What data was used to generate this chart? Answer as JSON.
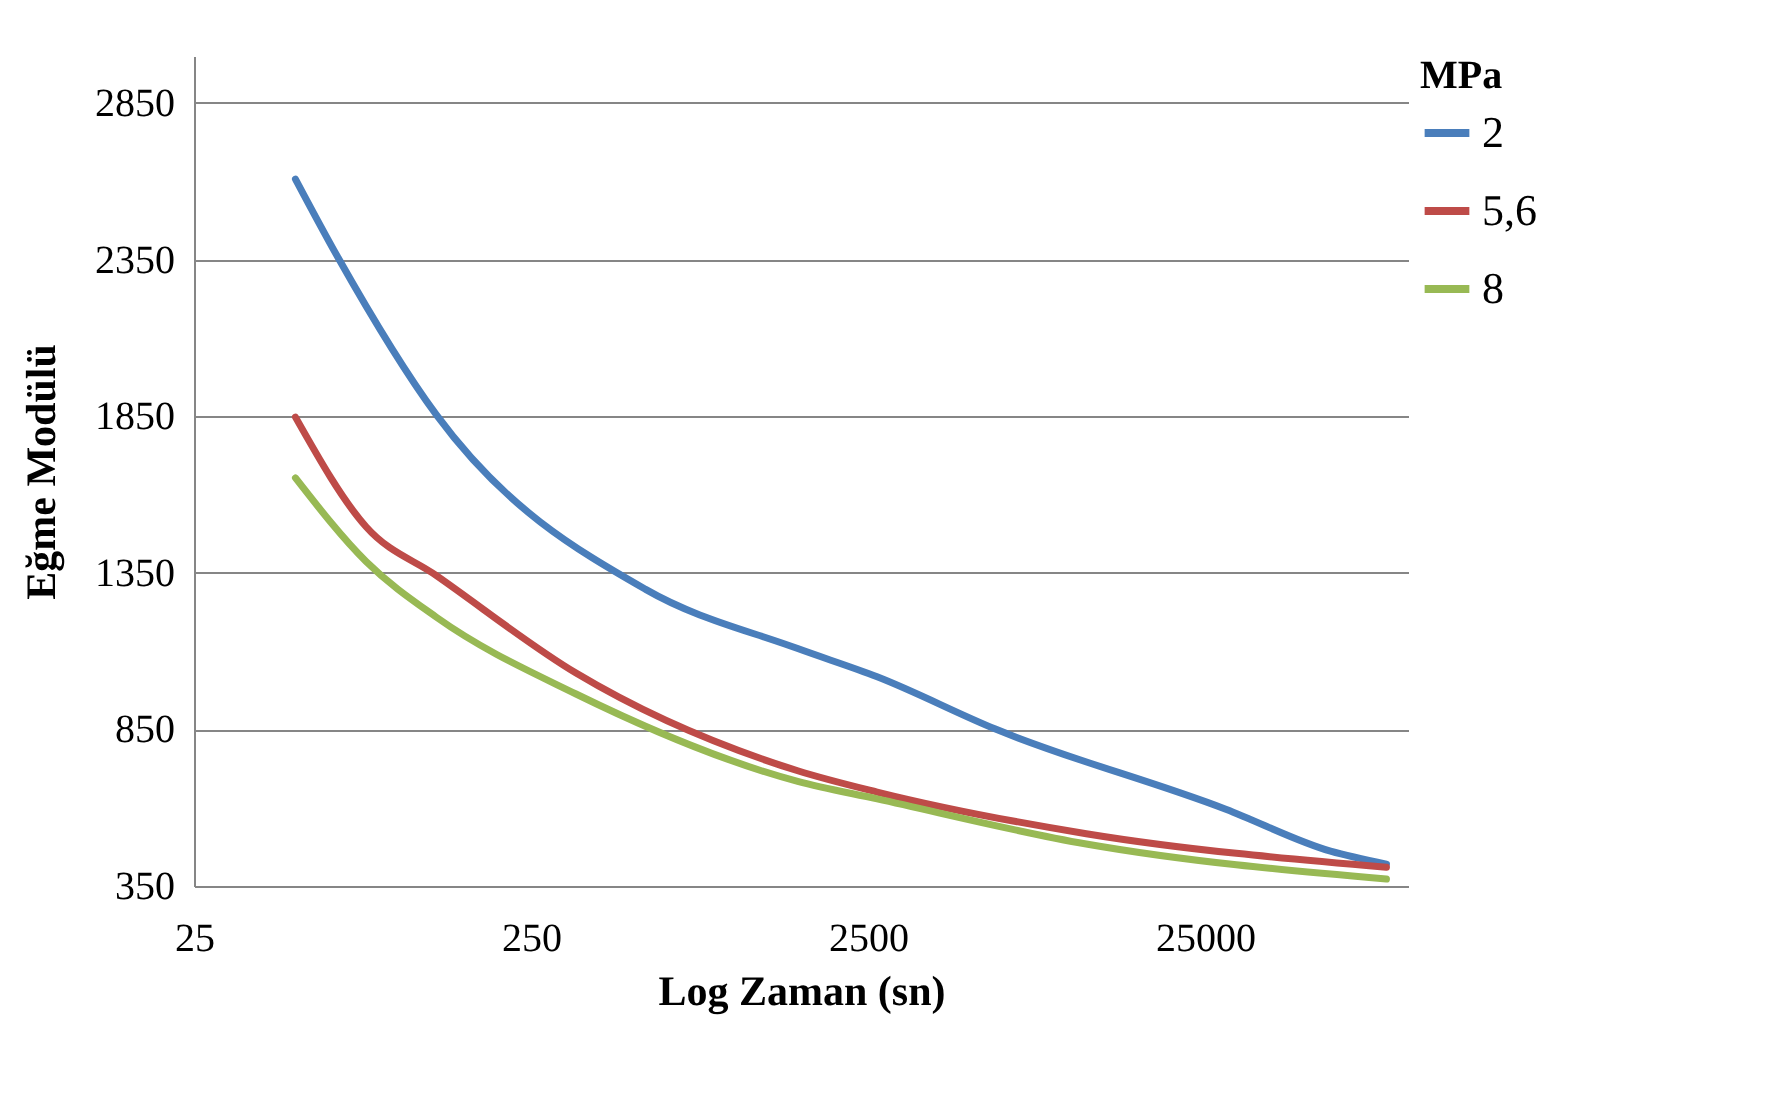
{
  "chart_data": {
    "type": "line",
    "xlabel": "Log Zaman (sn)",
    "ylabel": "Eğme Modülü",
    "legend_title": "MPa",
    "log": "x",
    "grid": "y",
    "legend": "right",
    "xlim": [
      25,
      100000
    ],
    "xticks": [
      25,
      250,
      2500,
      25000
    ],
    "ylim": [
      350,
      3000
    ],
    "yticks": [
      350,
      850,
      1350,
      1850,
      2350,
      2850
    ],
    "series": [
      {
        "name": "2",
        "color": "#4a7ebb",
        "x": [
          50,
          67,
          131,
          547,
          1546,
          2660,
          5970,
          28800,
          58900,
          86300
        ],
        "values": [
          2607,
          2355,
          1854,
          1297,
          1108,
          1018,
          851,
          595,
          461,
          420
        ]
      },
      {
        "name": "5,6",
        "color": "#be4b48",
        "x": [
          50,
          81,
          131,
          340,
          1546,
          2660,
          11100,
          86300
        ],
        "values": [
          1847,
          1497,
          1341,
          1030,
          718,
          650,
          517,
          410
        ]
      },
      {
        "name": "8",
        "color": "#98b954",
        "x": [
          50,
          81,
          131,
          340,
          1546,
          2660,
          11100,
          86300
        ],
        "values": [
          1653,
          1386,
          1208,
          963,
          684,
          628,
          484,
          372
        ]
      }
    ]
  }
}
